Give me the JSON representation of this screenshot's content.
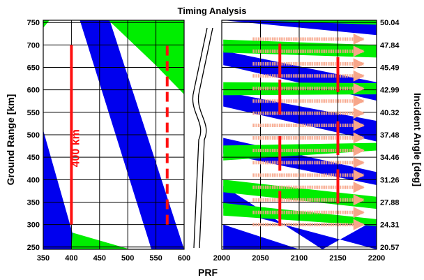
{
  "chart_data": {
    "type": "area",
    "title": "Timing Analysis",
    "xlabel": "PRF",
    "ylabel": "Ground Range [km]",
    "y2label": "Incident Angle [deg]",
    "annotation": "400 km",
    "ylim": [
      245,
      755
    ],
    "y_ticks": [
      250,
      300,
      350,
      400,
      450,
      500,
      550,
      600,
      650,
      700,
      750
    ],
    "y2_tick_labels": [
      "20.57",
      "24.31",
      "27.88",
      "31.26",
      "34.46",
      "37.48",
      "40.32",
      "42.99",
      "45.49",
      "47.84",
      "50.04"
    ],
    "panels": [
      {
        "name": "left",
        "xlim": [
          350,
          600
        ],
        "x_ticks": [
          350,
          400,
          450,
          500,
          550,
          600
        ],
        "grid": true,
        "blue_bands": [
          [
            [
              350,
              510
            ],
            [
              350,
              245
            ],
            [
              410,
              245
            ]
          ],
          [
            [
              415,
              755
            ],
            [
              468,
              755
            ],
            [
              600,
              245
            ],
            [
              542,
              245
            ]
          ],
          [
            [
              557,
              755
            ],
            [
              600,
              755
            ],
            [
              600,
              590
            ]
          ]
        ],
        "green_bands": [
          [
            [
              350,
              755
            ],
            [
              350,
              738
            ],
            [
              361,
              755
            ]
          ],
          [
            [
              466,
              755
            ],
            [
              600,
              755
            ],
            [
              600,
              590
            ],
            [
              547,
              658
            ]
          ],
          [
            [
              402,
              282
            ],
            [
              504,
              245
            ],
            [
              400,
              245
            ]
          ]
        ],
        "red_solid": [
          {
            "x": 400,
            "y1": 300,
            "y2": 700
          }
        ],
        "red_dashed": [
          {
            "x": 570,
            "y1": 300,
            "y2": 700
          }
        ]
      },
      {
        "name": "right",
        "xlim": [
          2000,
          2200
        ],
        "x_ticks": [
          2000,
          2050,
          2100,
          2150,
          2200
        ],
        "grid": true,
        "blue_bands": [
          [
            [
              2002,
              755
            ],
            [
              2200,
              755
            ],
            [
              2200,
              722
            ],
            [
              2002,
              755
            ]
          ],
          [
            [
              2002,
              655
            ],
            [
              2002,
              687
            ],
            [
              2200,
              617
            ],
            [
              2200,
              576
            ]
          ],
          [
            [
              2002,
              596
            ],
            [
              2002,
              563
            ],
            [
              2200,
              485
            ],
            [
              2200,
              531
            ]
          ],
          [
            [
              2002,
              493
            ],
            [
              2002,
              458
            ],
            [
              2200,
              388
            ],
            [
              2200,
              417
            ]
          ],
          [
            [
              2002,
              386
            ],
            [
              2002,
              336
            ],
            [
              2200,
              245
            ],
            [
              2200,
              312
            ],
            [
              2130,
              245
            ]
          ],
          [
            [
              2002,
              300
            ],
            [
              2002,
              245
            ],
            [
              2100,
              245
            ]
          ]
        ],
        "green_bands": [
          [
            [
              2040,
              755
            ],
            [
              2200,
              755
            ],
            [
              2200,
              745
            ]
          ],
          [
            [
              2002,
              712
            ],
            [
              2002,
              683
            ],
            [
              2200,
              672
            ],
            [
              2200,
              700
            ]
          ],
          [
            [
              2002,
              617
            ],
            [
              2002,
              588
            ],
            [
              2200,
              590
            ],
            [
              2200,
              615
            ]
          ],
          [
            [
              2002,
              476
            ],
            [
              2002,
              443
            ],
            [
              2200,
              465
            ],
            [
              2200,
              482
            ]
          ],
          [
            [
              2002,
              400
            ],
            [
              2002,
              372
            ],
            [
              2200,
              335
            ],
            [
              2200,
              362
            ]
          ],
          [
            [
              2002,
              348
            ],
            [
              2002,
              320
            ],
            [
              2200,
              297
            ],
            [
              2200,
              312
            ]
          ]
        ],
        "salmon_arrows_y": [
          300,
          327,
          355,
          383,
          410,
          438,
          465,
          493,
          521,
          548,
          575,
          603,
          631,
          658,
          686,
          713
        ],
        "salmon_arrows_x": [
          2040,
          2183
        ],
        "red_solid": [
          {
            "x": 2075,
            "y1": 297,
            "y2": 375
          },
          {
            "x": 2075,
            "y1": 420,
            "y2": 497
          },
          {
            "x": 2075,
            "y1": 545,
            "y2": 623
          },
          {
            "x": 2075,
            "y1": 627,
            "y2": 703
          },
          {
            "x": 2150,
            "y1": 347,
            "y2": 423
          },
          {
            "x": 2150,
            "y1": 455,
            "y2": 530
          },
          {
            "x": 2150,
            "y1": 595,
            "y2": 673
          }
        ]
      }
    ]
  },
  "colors": {
    "blue": "#0000ee",
    "green": "#00ee00",
    "red": "#ff1010",
    "salmon": "#f7a68a",
    "grid": "#000000"
  }
}
